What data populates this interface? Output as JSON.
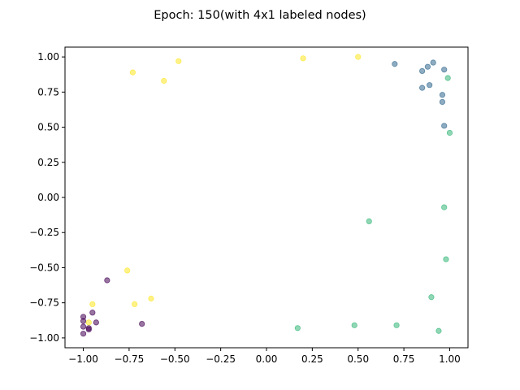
{
  "chart_data": {
    "type": "scatter",
    "title": "Epoch: 150(with 4x1 labeled nodes)",
    "xlabel": "",
    "ylabel": "",
    "xlim": [
      -1.1,
      1.1
    ],
    "ylim": [
      -1.07,
      1.07
    ],
    "xticks": [
      -1.0,
      -0.75,
      -0.5,
      -0.25,
      0.0,
      0.25,
      0.5,
      0.75,
      1.0
    ],
    "xtick_labels": [
      "−1.00",
      "−0.75",
      "−0.50",
      "−0.25",
      "0.00",
      "0.25",
      "0.50",
      "0.75",
      "1.00"
    ],
    "yticks": [
      -1.0,
      -0.75,
      -0.5,
      -0.25,
      0.0,
      0.25,
      0.5,
      0.75,
      1.0
    ],
    "ytick_labels": [
      "−1.00",
      "−0.75",
      "−0.50",
      "−0.25",
      "0.00",
      "0.25",
      "0.50",
      "0.75",
      "1.00"
    ],
    "grid": false,
    "series": [
      {
        "color": "#440154",
        "points": [
          [
            -1.0,
            -0.85
          ],
          [
            -1.0,
            -0.88
          ],
          [
            -1.0,
            -0.92
          ],
          [
            -1.0,
            -0.97
          ],
          [
            -0.97,
            -0.93
          ],
          [
            -0.97,
            -0.94
          ],
          [
            -0.95,
            -0.82
          ],
          [
            -0.93,
            -0.89
          ],
          [
            -0.87,
            -0.59
          ],
          [
            -0.68,
            -0.9
          ]
        ]
      },
      {
        "color": "#31688e",
        "points": [
          [
            0.7,
            0.95
          ],
          [
            0.85,
            0.9
          ],
          [
            0.85,
            0.78
          ],
          [
            0.88,
            0.93
          ],
          [
            0.89,
            0.8
          ],
          [
            0.91,
            0.96
          ],
          [
            0.96,
            0.73
          ],
          [
            0.96,
            0.68
          ],
          [
            0.97,
            0.91
          ],
          [
            0.97,
            0.51
          ]
        ]
      },
      {
        "color": "#35b779",
        "points": [
          [
            0.99,
            0.85
          ],
          [
            1.0,
            0.46
          ],
          [
            0.97,
            -0.07
          ],
          [
            0.56,
            -0.17
          ],
          [
            0.98,
            -0.44
          ],
          [
            0.9,
            -0.71
          ],
          [
            0.17,
            -0.93
          ],
          [
            0.48,
            -0.91
          ],
          [
            0.71,
            -0.91
          ],
          [
            0.94,
            -0.95
          ]
        ]
      },
      {
        "color": "#fde725",
        "points": [
          [
            -0.73,
            0.89
          ],
          [
            -0.56,
            0.83
          ],
          [
            -0.48,
            0.97
          ],
          [
            0.2,
            0.99
          ],
          [
            0.5,
            1.0
          ],
          [
            -0.76,
            -0.52
          ],
          [
            -0.72,
            -0.76
          ],
          [
            -0.63,
            -0.72
          ],
          [
            -0.95,
            -0.76
          ],
          [
            -0.97,
            -0.89
          ]
        ]
      }
    ]
  }
}
